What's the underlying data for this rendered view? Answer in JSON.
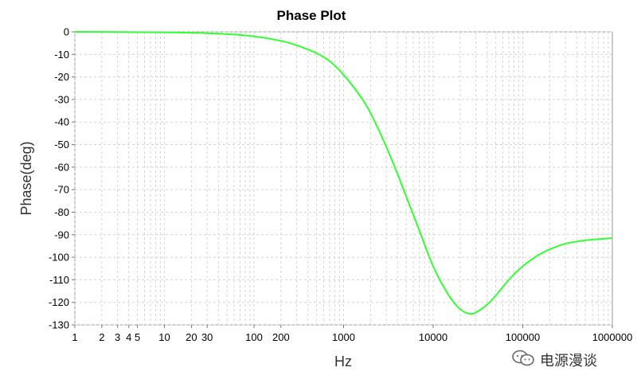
{
  "chart_data": {
    "type": "line",
    "title": "Phase Plot",
    "xlabel": "Hz",
    "ylabel": "Phase(deg)",
    "x_scale": "log",
    "xlim": [
      1,
      1000000
    ],
    "ylim": [
      -130,
      0
    ],
    "grid": true,
    "x_tick_labels": [
      {
        "value": 1,
        "label": "1"
      },
      {
        "value": 2,
        "label": "2"
      },
      {
        "value": 3,
        "label": "3"
      },
      {
        "value": 4,
        "label": "4"
      },
      {
        "value": 5,
        "label": "5"
      },
      {
        "value": 10,
        "label": "10"
      },
      {
        "value": 20,
        "label": "20"
      },
      {
        "value": 30,
        "label": "30"
      },
      {
        "value": 100,
        "label": "100"
      },
      {
        "value": 200,
        "label": "200"
      },
      {
        "value": 1000,
        "label": "1000"
      },
      {
        "value": 10000,
        "label": "10000"
      },
      {
        "value": 100000,
        "label": "100000"
      },
      {
        "value": 1000000,
        "label": "1000000"
      }
    ],
    "y_ticks": [
      0,
      -10,
      -20,
      -30,
      -40,
      -50,
      -60,
      -70,
      -80,
      -90,
      -100,
      -110,
      -120,
      -130
    ],
    "series": [
      {
        "color": "#33ff33",
        "x": [
          1,
          10,
          30,
          50,
          100,
          200,
          300,
          500,
          700,
          1000,
          1500,
          2000,
          3000,
          4000,
          5000,
          7000,
          10000,
          15000,
          20000,
          25000,
          30000,
          40000,
          50000,
          70000,
          100000,
          150000,
          200000,
          300000,
          500000,
          700000,
          1000000
        ],
        "y": [
          0,
          -0.2,
          -0.6,
          -1,
          -2,
          -4,
          -6,
          -9.5,
          -13,
          -19,
          -28,
          -36,
          -51,
          -63,
          -73,
          -88,
          -104,
          -117,
          -123,
          -125,
          -124.5,
          -121,
          -117,
          -110,
          -104,
          -99,
          -96.5,
          -94,
          -92.5,
          -92,
          -91.5
        ]
      }
    ]
  },
  "watermark": {
    "text": "电源漫谈",
    "icon": "wechat-icon"
  }
}
